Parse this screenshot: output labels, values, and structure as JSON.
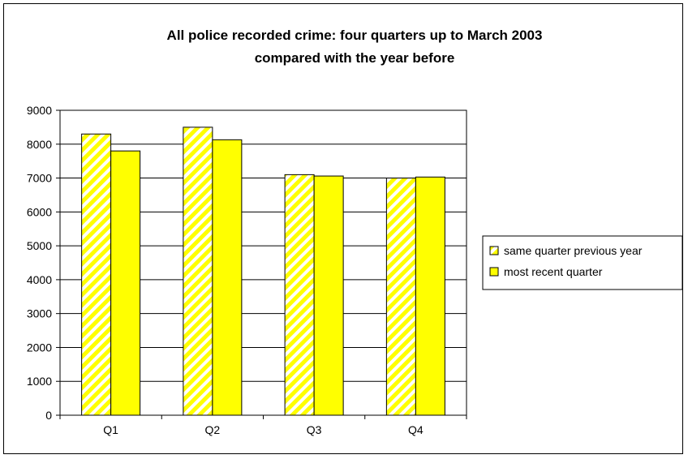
{
  "chart_data": {
    "type": "bar",
    "title": "All police recorded crime: four quarters up to March 2003",
    "subtitle": "compared with the year before",
    "xlabel": "",
    "ylabel": "",
    "categories": [
      "Q1",
      "Q2",
      "Q3",
      "Q4"
    ],
    "ylim": [
      0,
      9000
    ],
    "yticks": [
      0,
      1000,
      2000,
      3000,
      4000,
      5000,
      6000,
      7000,
      8000,
      9000
    ],
    "grid": true,
    "legend": "right",
    "series": [
      {
        "name": "same quarter previous year",
        "values": [
          8300,
          8500,
          7100,
          7000
        ],
        "color": "#ffff00",
        "pattern": "diagonal-hatch"
      },
      {
        "name": "most recent quarter",
        "values": [
          7800,
          8130,
          7060,
          7030
        ],
        "color": "#ffff00",
        "pattern": "solid"
      }
    ]
  }
}
